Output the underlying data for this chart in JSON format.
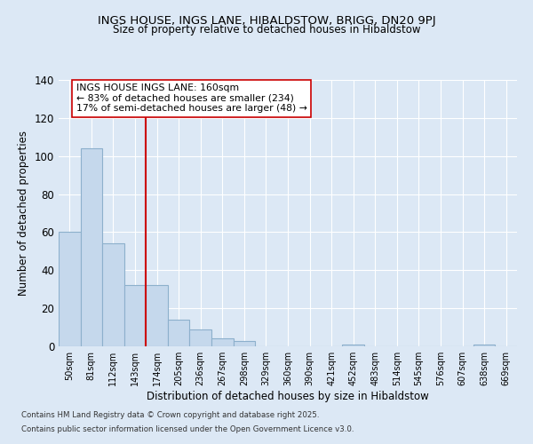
{
  "title": "INGS HOUSE, INGS LANE, HIBALDSTOW, BRIGG, DN20 9PJ",
  "subtitle": "Size of property relative to detached houses in Hibaldstow",
  "xlabel": "Distribution of detached houses by size in Hibaldstow",
  "ylabel": "Number of detached properties",
  "bar_labels": [
    "50sqm",
    "81sqm",
    "112sqm",
    "143sqm",
    "174sqm",
    "205sqm",
    "236sqm",
    "267sqm",
    "298sqm",
    "329sqm",
    "360sqm",
    "390sqm",
    "421sqm",
    "452sqm",
    "483sqm",
    "514sqm",
    "545sqm",
    "576sqm",
    "607sqm",
    "638sqm",
    "669sqm"
  ],
  "bar_values": [
    60,
    104,
    54,
    32,
    32,
    14,
    9,
    4,
    3,
    0,
    0,
    0,
    0,
    1,
    0,
    0,
    0,
    0,
    0,
    1,
    0
  ],
  "bar_color": "#c5d8ec",
  "bar_edge_color": "#8db0cc",
  "vline_index": 4,
  "vline_color": "#cc0000",
  "annotation_line1": "INGS HOUSE INGS LANE: 160sqm",
  "annotation_line2": "← 83% of detached houses are smaller (234)",
  "annotation_line3": "17% of semi-detached houses are larger (48) →",
  "annotation_box_color": "white",
  "annotation_box_edge": "#cc0000",
  "ylim": [
    0,
    140
  ],
  "yticks": [
    0,
    20,
    40,
    60,
    80,
    100,
    120,
    140
  ],
  "footer_line1": "Contains HM Land Registry data © Crown copyright and database right 2025.",
  "footer_line2": "Contains public sector information licensed under the Open Government Licence v3.0.",
  "bg_color": "#dce8f5",
  "plot_bg_color": "#dce8f5",
  "grid_color": "#ffffff"
}
